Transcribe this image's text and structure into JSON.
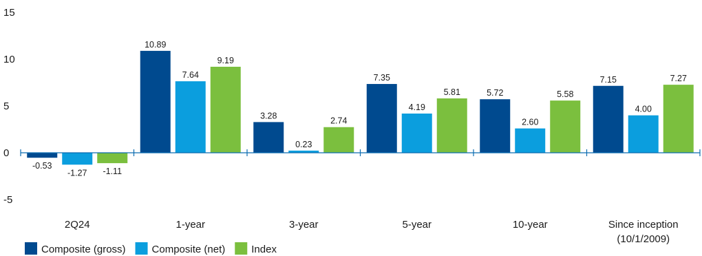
{
  "chart_data": {
    "type": "bar",
    "categories": [
      "2Q24",
      "1-year",
      "3-year",
      "5-year",
      "10-year",
      "Since inception\n(10/1/2009)"
    ],
    "series": [
      {
        "name": "Composite (gross)",
        "color": "#004a8f",
        "values": [
          -0.53,
          10.89,
          3.28,
          7.35,
          5.72,
          7.15
        ]
      },
      {
        "name": "Composite (net)",
        "color": "#0b9ede",
        "values": [
          -1.27,
          7.64,
          0.23,
          4.19,
          2.6,
          4.0
        ]
      },
      {
        "name": "Index",
        "color": "#7bbf3e",
        "values": [
          -1.11,
          9.19,
          2.74,
          5.81,
          5.58,
          7.27
        ]
      }
    ],
    "ylim": [
      -5,
      15
    ],
    "yticks": [
      "-5",
      "0",
      "5",
      "10",
      "15"
    ],
    "data_labels": [
      [
        "-0.53",
        "10.89",
        "3.28",
        "7.35",
        "5.72",
        "7.15"
      ],
      [
        "-1.27",
        "7.64",
        "0.23",
        "4.19",
        "2.60",
        "4.00"
      ],
      [
        "-1.11",
        "9.19",
        "2.74",
        "5.81",
        "5.58",
        "7.27"
      ]
    ],
    "title": "",
    "xlabel": "",
    "ylabel": "",
    "grid": false,
    "legend_position": "bottom-left",
    "axis_color": "#0b6cb0"
  }
}
